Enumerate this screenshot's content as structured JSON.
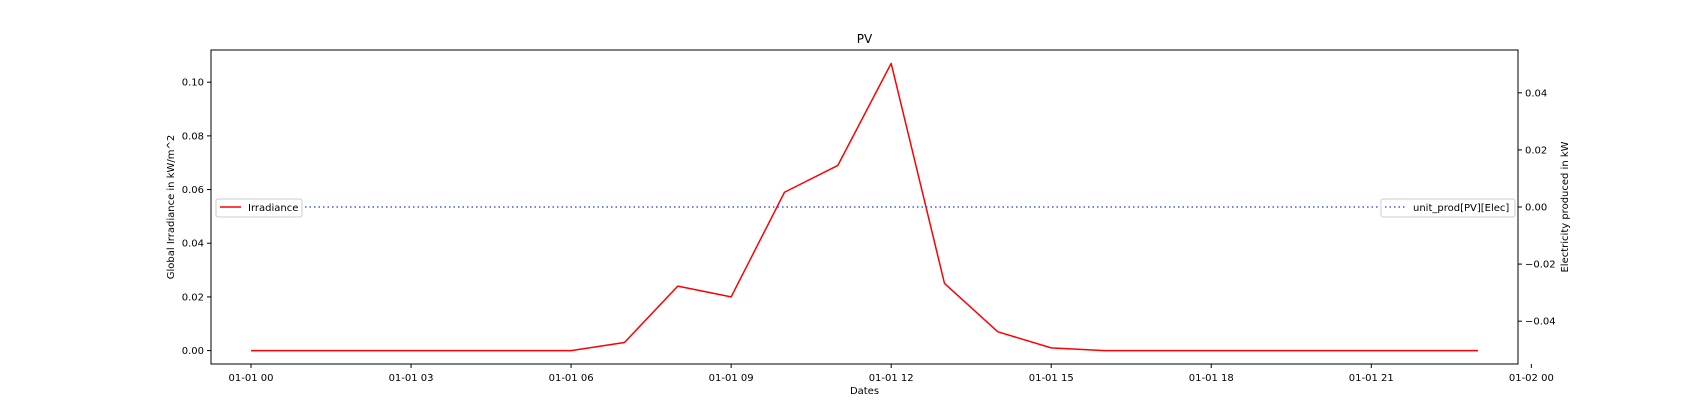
{
  "chart_data": {
    "type": "line",
    "title": "PV",
    "xlabel": "Dates",
    "ylabel_left": "Global Irradiance in kW/m^2",
    "ylabel_right": "Electricity produced in kW",
    "x_start": "01-01 00",
    "x_step_hours": 1,
    "xlim_hours": [
      -0.75,
      23.75
    ],
    "x_ticks": [
      "01-01 00",
      "01-01 03",
      "01-01 06",
      "01-01 09",
      "01-01 12",
      "01-01 15",
      "01-01 18",
      "01-01 21",
      "01-02 00"
    ],
    "y_left_ticks": [
      "0.00",
      "0.02",
      "0.04",
      "0.06",
      "0.08",
      "0.10"
    ],
    "y_right_ticks": [
      "-0.04",
      "-0.02",
      "0.00",
      "0.02",
      "0.04"
    ],
    "y_left_lim": [
      -0.005,
      0.112
    ],
    "y_right_lim": [
      -0.055,
      0.055
    ],
    "grid": false,
    "series": [
      {
        "name": "Irradiance",
        "axis": "left",
        "color": "#ff0000",
        "style": "solid",
        "legend_position": "center-left",
        "values": [
          0,
          0,
          0,
          0,
          0,
          0,
          0,
          0.003,
          0.024,
          0.02,
          0.059,
          0.069,
          0.107,
          0.025,
          0.007,
          0.001,
          0,
          0,
          0,
          0,
          0,
          0,
          0,
          0
        ]
      },
      {
        "name": "unit_prod[PV][Elec]",
        "axis": "right",
        "color": "#4060d0",
        "style": "dotted",
        "legend_position": "center-right",
        "values": [
          0,
          0,
          0,
          0,
          0,
          0,
          0,
          0,
          0,
          0,
          0,
          0,
          0,
          0,
          0,
          0,
          0,
          0,
          0,
          0,
          0,
          0,
          0,
          0
        ]
      }
    ]
  }
}
